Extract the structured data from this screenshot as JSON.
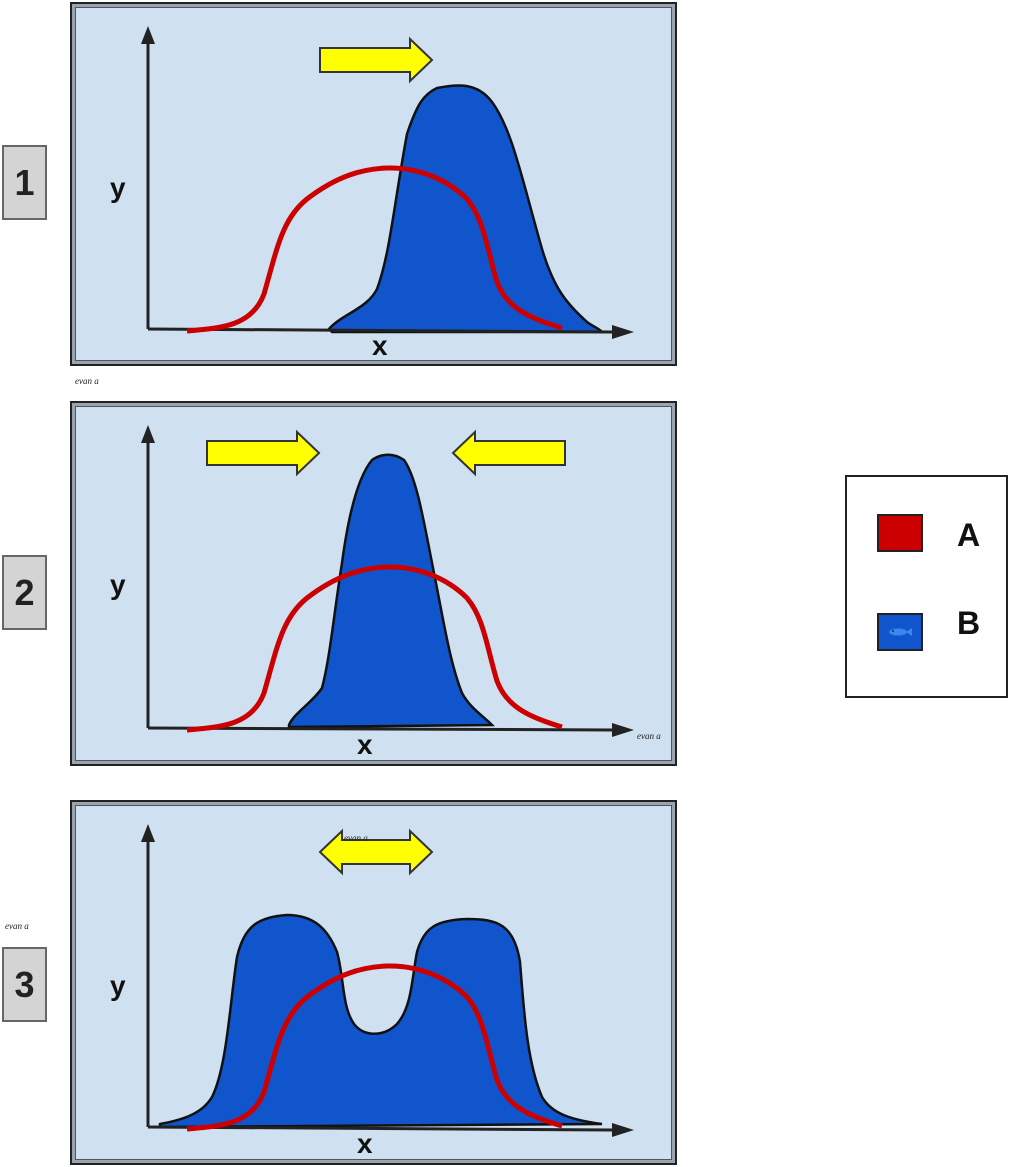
{
  "colors": {
    "A": "#cc0000",
    "B": "#1155cc",
    "panel_bg": "#cfe0f0",
    "arrow": "#ffff00"
  },
  "axes": {
    "x_label": "x",
    "y_label": "y"
  },
  "panels": [
    {
      "number": "1",
      "arrows": "single-right-arrow"
    },
    {
      "number": "2",
      "arrows": "converging-arrows"
    },
    {
      "number": "3",
      "arrows": "double-headed-arrow"
    }
  ],
  "watermarks": {
    "w1": "evan a",
    "w2": "evan a",
    "w3": "evan a",
    "w4": "evan a"
  },
  "legend": {
    "items": [
      {
        "label": "A",
        "color": "#cc0000"
      },
      {
        "label": "B",
        "color": "#1155cc",
        "icon": "fish-icon"
      }
    ]
  }
}
